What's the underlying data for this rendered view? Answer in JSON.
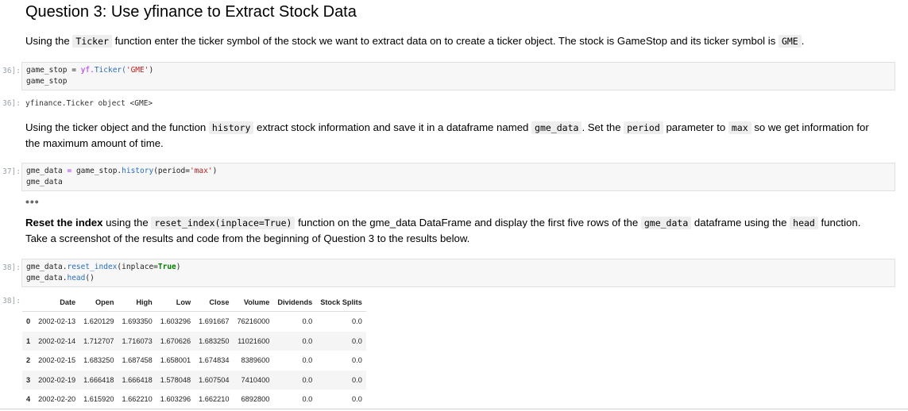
{
  "heading": "Question 3: Use yfinance to Extract Stock Data",
  "md1": {
    "a": "Using the ",
    "code1": "Ticker",
    "b": " function enter the ticker symbol of the stock we want to extract data on to create a ticker object. The stock is GameStop and its ticker symbol is ",
    "code2": "GME",
    "c": "."
  },
  "cell1": {
    "prompt": "36]:",
    "l1a": "game_stop = ",
    "l1b": " yf.",
    "l1c": "Ticker(",
    "l1d": "'GME'",
    "l1e": ")",
    "l2": "game_stop"
  },
  "out1": {
    "prompt": "36]:",
    "text": "yfinance.Ticker object <GME>"
  },
  "md2": {
    "a": "Using the ticker object and the function ",
    "code1": "history",
    "b": " extract stock information and save it in a dataframe named ",
    "code2": "gme_data",
    "c": ". Set the ",
    "code3": "period",
    "d": " parameter to ",
    "code4": "max",
    "e": " so we get information for the maximum amount of time."
  },
  "cell2": {
    "prompt": "37]:",
    "l1a": "gme_data ",
    "l1b": "=",
    "l1c": " game_stop.",
    "l1d": "history",
    "l1e": "(period=",
    "l1f": "'max'",
    "l1g": ")",
    "l2": "gme_data"
  },
  "ellipsis": "•••",
  "md3": {
    "bold": "Reset the index",
    "a": " using the ",
    "code1": "reset_index(inplace=True)",
    "b": " function on the gme_data DataFrame and display the first five rows of the ",
    "code2": "gme_data",
    "c": " dataframe using the ",
    "code3": "head",
    "d": " function. Take a screenshot of the results and code from the beginning of Question 3 to the results below."
  },
  "cell3": {
    "prompt": "38]:",
    "l1a": "gme_data.",
    "l1b": "reset_index",
    "l1c": "(inplace=",
    "l1d": "True",
    "l1e": ")",
    "l2a": "gme_data.",
    "l2b": "head",
    "l2c": "()"
  },
  "out3": {
    "prompt": "38]:"
  },
  "table": {
    "columns": [
      "",
      "Date",
      "Open",
      "High",
      "Low",
      "Close",
      "Volume",
      "Dividends",
      "Stock Splits"
    ],
    "rows": [
      [
        "0",
        "2002-02-13",
        "1.620129",
        "1.693350",
        "1.603296",
        "1.691667",
        "76216000",
        "0.0",
        "0.0"
      ],
      [
        "1",
        "2002-02-14",
        "1.712707",
        "1.716073",
        "1.670626",
        "1.683250",
        "11021600",
        "0.0",
        "0.0"
      ],
      [
        "2",
        "2002-02-15",
        "1.683250",
        "1.687458",
        "1.658001",
        "1.674834",
        "8389600",
        "0.0",
        "0.0"
      ],
      [
        "3",
        "2002-02-19",
        "1.666418",
        "1.666418",
        "1.578048",
        "1.607504",
        "7410400",
        "0.0",
        "0.0"
      ],
      [
        "4",
        "2002-02-20",
        "1.615920",
        "1.662210",
        "1.603296",
        "1.662210",
        "6892800",
        "0.0",
        "0.0"
      ]
    ]
  }
}
